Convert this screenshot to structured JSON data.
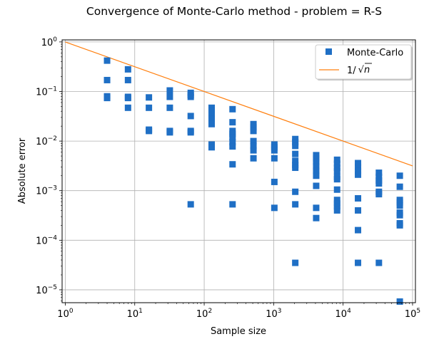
{
  "chart_data": {
    "type": "scatter",
    "title": "Convergence of Monte-Carlo method - problem = R-S",
    "xlabel": "Sample size",
    "ylabel": "Absolute error",
    "xscale": "log",
    "yscale": "log",
    "xlim": [
      0.9,
      110000
    ],
    "ylim": [
      5.5e-06,
      1.1
    ],
    "grid": true,
    "legend_position": "top-right",
    "x_ticks": [
      {
        "base": "10",
        "exp": "0",
        "value": 1
      },
      {
        "base": "10",
        "exp": "1",
        "value": 10
      },
      {
        "base": "10",
        "exp": "2",
        "value": 100
      },
      {
        "base": "10",
        "exp": "3",
        "value": 1000
      },
      {
        "base": "10",
        "exp": "4",
        "value": 10000
      },
      {
        "base": "10",
        "exp": "5",
        "value": 100000
      }
    ],
    "y_ticks": [
      {
        "base": "10",
        "exp": "0",
        "value": 1
      },
      {
        "base": "10",
        "exp": "−1",
        "value": 0.1
      },
      {
        "base": "10",
        "exp": "−2",
        "value": 0.01
      },
      {
        "base": "10",
        "exp": "−3",
        "value": 0.001
      },
      {
        "base": "10",
        "exp": "−4",
        "value": 0.0001
      },
      {
        "base": "10",
        "exp": "−5",
        "value": 1e-05
      }
    ],
    "series": [
      {
        "name": "Monte-Carlo",
        "marker": "square",
        "color": "#1f6fc5",
        "points": [
          [
            4,
            0.42
          ],
          [
            4,
            0.17
          ],
          [
            4,
            0.08
          ],
          [
            4,
            0.076
          ],
          [
            4,
            0.074
          ],
          [
            8,
            0.28
          ],
          [
            8,
            0.17
          ],
          [
            8,
            0.078
          ],
          [
            8,
            0.074
          ],
          [
            8,
            0.047
          ],
          [
            16,
            0.076
          ],
          [
            16,
            0.047
          ],
          [
            16,
            0.017
          ],
          [
            16,
            0.016
          ],
          [
            32,
            0.105
          ],
          [
            32,
            0.078
          ],
          [
            32,
            0.047
          ],
          [
            32,
            0.016
          ],
          [
            32,
            0.015
          ],
          [
            64,
            0.094
          ],
          [
            64,
            0.085
          ],
          [
            64,
            0.078
          ],
          [
            64,
            0.032
          ],
          [
            64,
            0.016
          ],
          [
            64,
            0.015
          ],
          [
            64,
            0.00053
          ],
          [
            128,
            0.047
          ],
          [
            128,
            0.042
          ],
          [
            128,
            0.035
          ],
          [
            128,
            0.028
          ],
          [
            128,
            0.022
          ],
          [
            128,
            0.0085
          ],
          [
            128,
            0.0075
          ],
          [
            256,
            0.044
          ],
          [
            256,
            0.024
          ],
          [
            256,
            0.016
          ],
          [
            256,
            0.014
          ],
          [
            256,
            0.012
          ],
          [
            256,
            0.0095
          ],
          [
            256,
            0.0078
          ],
          [
            256,
            0.0034
          ],
          [
            256,
            0.00053
          ],
          [
            512,
            0.022
          ],
          [
            512,
            0.019
          ],
          [
            512,
            0.016
          ],
          [
            512,
            0.01
          ],
          [
            512,
            0.008
          ],
          [
            512,
            0.0065
          ],
          [
            512,
            0.0045
          ],
          [
            1024,
            0.0085
          ],
          [
            1024,
            0.0075
          ],
          [
            1024,
            0.0065
          ],
          [
            1024,
            0.0045
          ],
          [
            1024,
            0.0015
          ],
          [
            1024,
            0.00045
          ],
          [
            2048,
            0.011
          ],
          [
            2048,
            0.0095
          ],
          [
            2048,
            0.008
          ],
          [
            2048,
            0.0055
          ],
          [
            2048,
            0.004
          ],
          [
            2048,
            0.0033
          ],
          [
            2048,
            0.0029
          ],
          [
            2048,
            0.00095
          ],
          [
            2048,
            0.00053
          ],
          [
            2048,
            3.5e-05
          ],
          [
            4096,
            0.0052
          ],
          [
            4096,
            0.0045
          ],
          [
            4096,
            0.0038
          ],
          [
            4096,
            0.0031
          ],
          [
            4096,
            0.0025
          ],
          [
            4096,
            0.002
          ],
          [
            4096,
            0.00125
          ],
          [
            4096,
            0.00045
          ],
          [
            4096,
            0.00028
          ],
          [
            8192,
            0.0042
          ],
          [
            8192,
            0.0035
          ],
          [
            8192,
            0.0029
          ],
          [
            8192,
            0.0025
          ],
          [
            8192,
            0.0019
          ],
          [
            8192,
            0.0017
          ],
          [
            8192,
            0.00105
          ],
          [
            8192,
            0.00065
          ],
          [
            8192,
            0.00055
          ],
          [
            8192,
            0.00048
          ],
          [
            8192,
            0.0004
          ],
          [
            16384,
            0.0036
          ],
          [
            16384,
            0.003
          ],
          [
            16384,
            0.0025
          ],
          [
            16384,
            0.0021
          ],
          [
            16384,
            0.0007
          ],
          [
            16384,
            0.0004
          ],
          [
            16384,
            0.00016
          ],
          [
            16384,
            3.5e-05
          ],
          [
            32768,
            0.0023
          ],
          [
            32768,
            0.0019
          ],
          [
            32768,
            0.0016
          ],
          [
            32768,
            0.0014
          ],
          [
            32768,
            0.00095
          ],
          [
            32768,
            0.00085
          ],
          [
            32768,
            3.5e-05
          ],
          [
            65536,
            0.002
          ],
          [
            65536,
            0.0012
          ],
          [
            65536,
            0.00065
          ],
          [
            65536,
            0.00058
          ],
          [
            65536,
            0.0005
          ],
          [
            65536,
            0.00036
          ],
          [
            65536,
            0.00032
          ],
          [
            65536,
            0.00022
          ],
          [
            65536,
            0.0002
          ],
          [
            65536,
            5.8e-06
          ]
        ]
      },
      {
        "name": "1/√n",
        "line": true,
        "color": "#ff7f0e",
        "x_range": [
          1,
          100000
        ]
      }
    ],
    "legend": {
      "entries": [
        {
          "label": "Monte-Carlo"
        },
        {
          "label_prefix": "1/",
          "label_radicand": "n"
        }
      ]
    }
  }
}
